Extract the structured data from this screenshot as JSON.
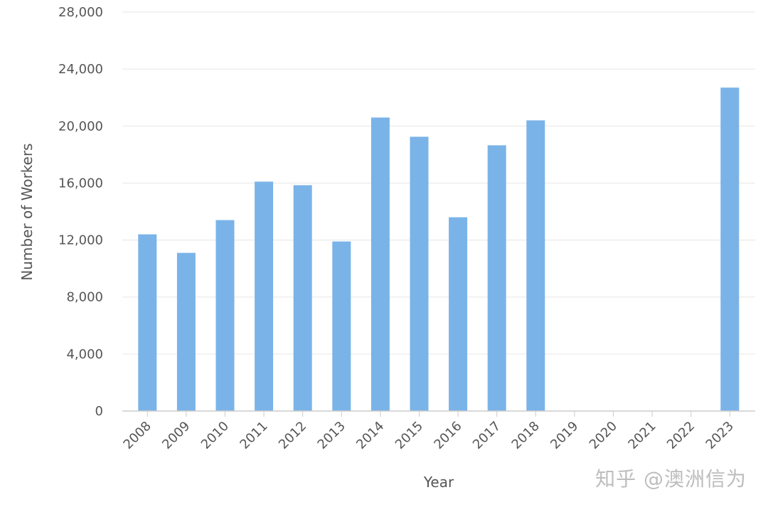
{
  "chart_data": {
    "type": "bar",
    "xlabel": "Year",
    "ylabel": "Number of Workers",
    "ylim": [
      0,
      28000
    ],
    "yticks": [
      0,
      4000,
      8000,
      12000,
      16000,
      20000,
      24000,
      28000
    ],
    "ytick_labels": [
      "0",
      "4,000",
      "8,000",
      "12,000",
      "16,000",
      "20,000",
      "24,000",
      "28,000"
    ],
    "grid": true,
    "bar_color": "#7ab3e8",
    "categories": [
      "2008",
      "2009",
      "2010",
      "2011",
      "2012",
      "2013",
      "2014",
      "2015",
      "2016",
      "2017",
      "2018",
      "2019",
      "2020",
      "2021",
      "2022",
      "2023"
    ],
    "values": [
      12400,
      11100,
      13400,
      16100,
      15850,
      11900,
      20600,
      19250,
      13600,
      18650,
      20400,
      null,
      null,
      null,
      null,
      22700
    ]
  },
  "watermark": "知乎 @澳洲信为"
}
